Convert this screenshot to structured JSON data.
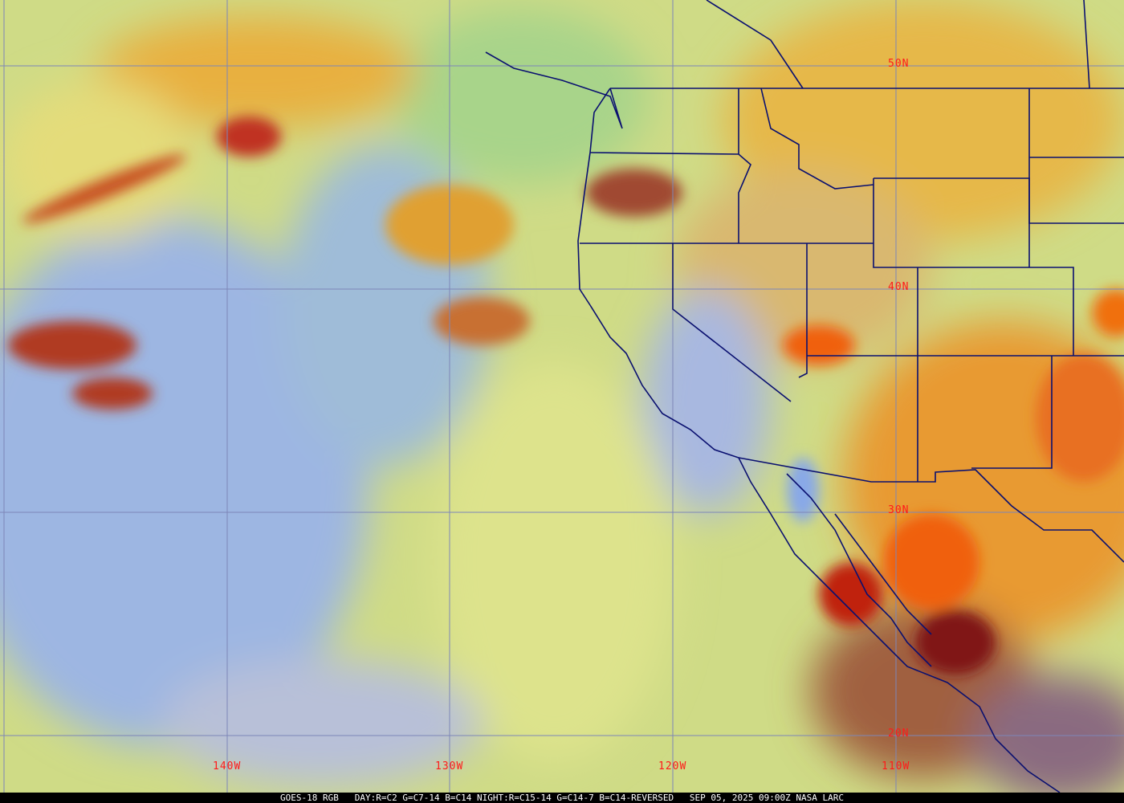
{
  "caption": "GOES-18 RGB   DAY:R=C2 G=C7-14 B=C14 NIGHT:R=C15-14 G=C14-7 B=C14-REVERSED   SEP 05, 2025 09:00Z NASA LARC",
  "grid": {
    "latitude_labels": [
      "50N",
      "40N",
      "30N",
      "20N"
    ],
    "longitude_labels": [
      "140W",
      "130W",
      "120W",
      "110W"
    ]
  },
  "colors": {
    "grid_line": "#7d86b8",
    "boundary_line": "#0a1070",
    "label": "#ff1a1a",
    "clear_ocean": "#9fb8e0",
    "low_cloud": "#d8e08a",
    "high_cloud": "#e89a30",
    "deep_convection": "#b02010"
  }
}
